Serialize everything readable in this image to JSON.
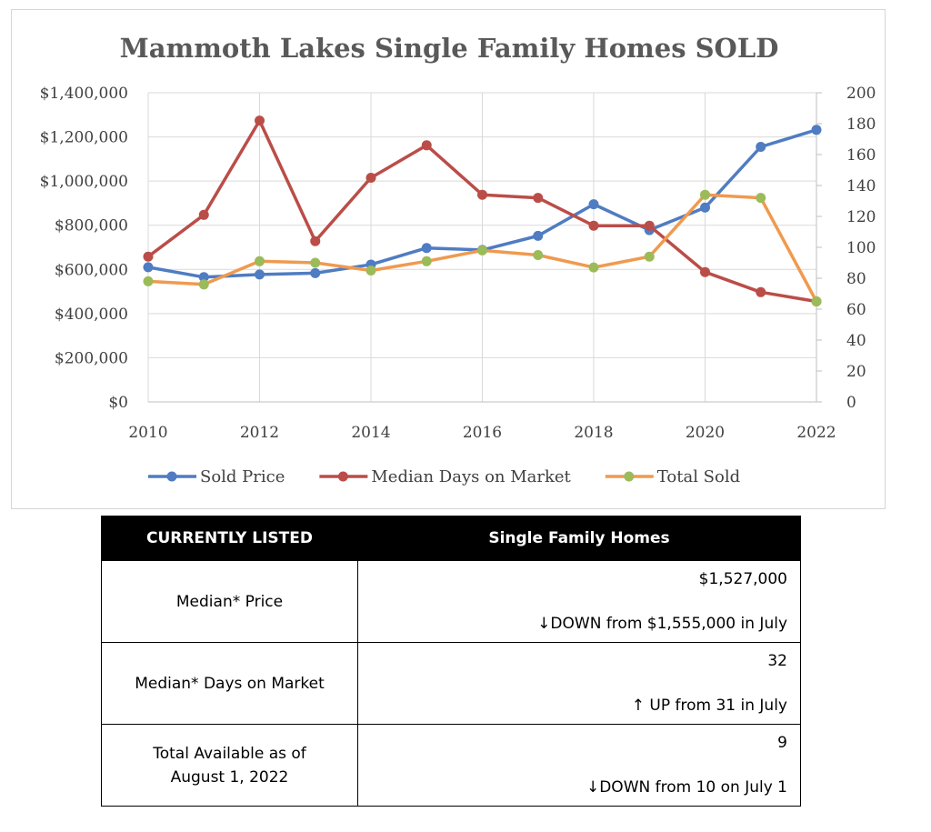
{
  "chart_data": {
    "type": "line",
    "title": "Mammoth Lakes Single Family Homes SOLD",
    "x": [
      2010,
      2011,
      2012,
      2013,
      2014,
      2015,
      2016,
      2017,
      2018,
      2019,
      2020,
      2021,
      2022
    ],
    "x_ticks": [
      2010,
      2012,
      2014,
      2016,
      2018,
      2020,
      2022
    ],
    "x_tick_labels": [
      "2010",
      "2012",
      "2014",
      "2016",
      "2018",
      "2020",
      "2022"
    ],
    "y_left_ticks": [
      "$0",
      "$200,000",
      "$400,000",
      "$600,000",
      "$800,000",
      "$1,000,000",
      "$1,200,000",
      "$1,400,000"
    ],
    "y_left_lim": [
      0,
      1400000
    ],
    "y_right_ticks": [
      "0",
      "20",
      "40",
      "60",
      "80",
      "100",
      "120",
      "140",
      "160",
      "180",
      "200"
    ],
    "y_right_lim": [
      0,
      200
    ],
    "grid": true,
    "legend_position": "bottom",
    "series": [
      {
        "name": "Sold Price",
        "axis": "left",
        "color": "#4f7cc2",
        "values": [
          610000,
          565000,
          577000,
          583000,
          622000,
          697000,
          688000,
          752000,
          895000,
          778000,
          880000,
          1155000,
          1232000
        ]
      },
      {
        "name": "Median Days on Market",
        "axis": "right",
        "color": "#bb4d48",
        "values": [
          94,
          121,
          182,
          104,
          145,
          166,
          134,
          132,
          114,
          114,
          84,
          71,
          65
        ]
      },
      {
        "name": "Total Sold",
        "axis": "right",
        "color": "#ef9a4f",
        "marker_color": "#9bbb59",
        "values": [
          78,
          76,
          91,
          90,
          85,
          91,
          98,
          95,
          87,
          94,
          134,
          132,
          65
        ]
      }
    ]
  },
  "table": {
    "header": {
      "col1": "CURRENTLY LISTED",
      "col2": "Single Family Homes"
    },
    "rows": [
      {
        "label": "Median* Price",
        "value": "$1,527,000",
        "change_arrow": "↓",
        "change": "DOWN from $1,555,000 in July"
      },
      {
        "label": "Median* Days on Market",
        "value": "32",
        "change_arrow": "↑",
        "change": " UP from 31 in July"
      },
      {
        "label": "Total Available as of August 1, 2022",
        "value": "9",
        "change_arrow": "↓",
        "change": "DOWN from 10 on July 1"
      }
    ]
  }
}
